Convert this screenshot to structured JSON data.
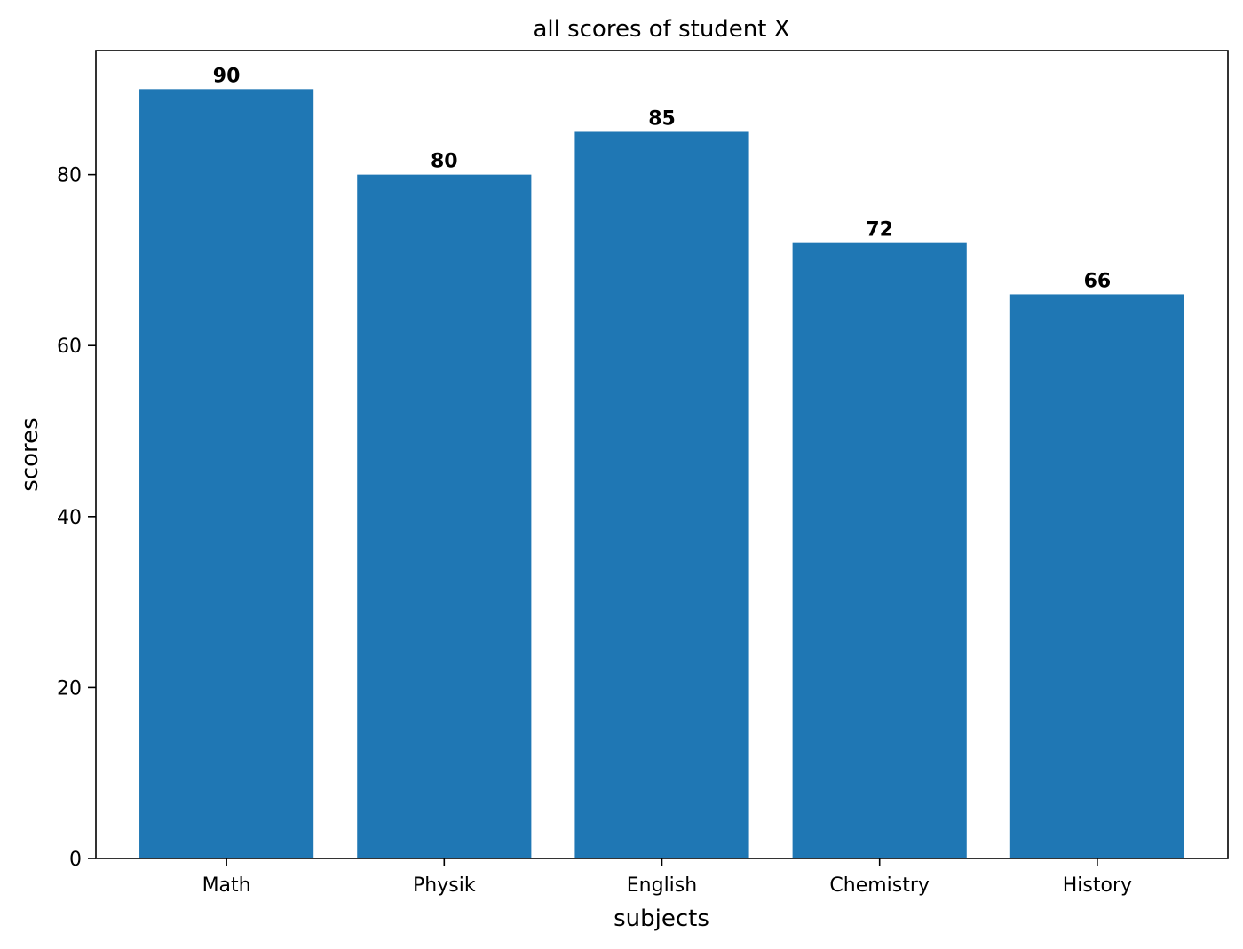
{
  "chart_data": {
    "type": "bar",
    "title": "all scores of student X",
    "xlabel": "subjects",
    "ylabel": "scores",
    "categories": [
      "Math",
      "Physik",
      "English",
      "Chemistry",
      "History"
    ],
    "values": [
      90,
      80,
      85,
      72,
      66
    ],
    "bar_labels": [
      "90",
      "80",
      "85",
      "72",
      "66"
    ],
    "ylim": [
      0,
      94.5
    ],
    "yticks": [
      0,
      20,
      40,
      60,
      80
    ],
    "ytick_labels": [
      "0",
      "20",
      "40",
      "60",
      "80"
    ],
    "grid": false,
    "legend": null,
    "bar_color": "#1f77b4"
  }
}
